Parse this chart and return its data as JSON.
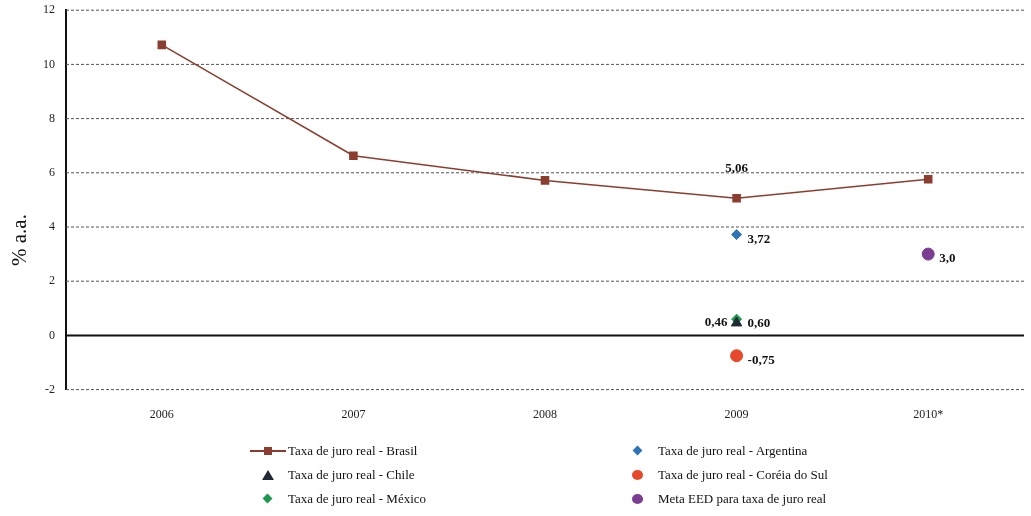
{
  "chart_data": {
    "type": "line",
    "ylabel": "% a.a.",
    "categories": [
      "2006",
      "2007",
      "2008",
      "2009",
      "2010*"
    ],
    "ylim": [
      -2,
      12
    ],
    "yticks": [
      -2,
      0,
      2,
      4,
      6,
      8,
      10,
      12
    ],
    "grid": "y",
    "legend": "bottom",
    "series": [
      {
        "name": "Taxa de juro real  - Brasil",
        "marker": "square",
        "color": "#8b3e2f",
        "values": [
          10.72,
          6.63,
          5.72,
          5.06,
          5.76
        ],
        "value_labels": [
          null,
          null,
          null,
          "5,06",
          null
        ]
      },
      {
        "name": "Taxa de juro real  - Argentina",
        "type": "scatter",
        "marker": "diamond",
        "color": "#2e75b6",
        "values": [
          null,
          null,
          null,
          3.72,
          null
        ],
        "value_labels": [
          null,
          null,
          null,
          "3,72",
          null
        ]
      },
      {
        "name": "Taxa de juro real  - Chile",
        "type": "scatter",
        "marker": "triangle",
        "color": "#222a35",
        "values": [
          null,
          null,
          null,
          0.46,
          null
        ],
        "value_labels": [
          null,
          null,
          null,
          "0,46",
          null
        ]
      },
      {
        "name": "Taxa de juro real  - Coréia do Sul",
        "type": "scatter",
        "marker": "circle",
        "color": "#e8482a",
        "values": [
          null,
          null,
          null,
          -0.75,
          null
        ],
        "value_labels": [
          null,
          null,
          null,
          "-0,75",
          null
        ]
      },
      {
        "name": "Taxa de juro real  - México",
        "type": "scatter",
        "marker": "diamond",
        "color": "#1a9a4a",
        "values": [
          null,
          null,
          null,
          0.6,
          null
        ],
        "value_labels": [
          null,
          null,
          null,
          "0,60",
          null
        ]
      },
      {
        "name": "Meta EED para taxa de juro real",
        "type": "scatter",
        "marker": "circle",
        "color": "#7b3d91",
        "values": [
          null,
          null,
          null,
          null,
          3.0
        ],
        "value_labels": [
          null,
          null,
          null,
          null,
          "3,0"
        ]
      }
    ]
  }
}
